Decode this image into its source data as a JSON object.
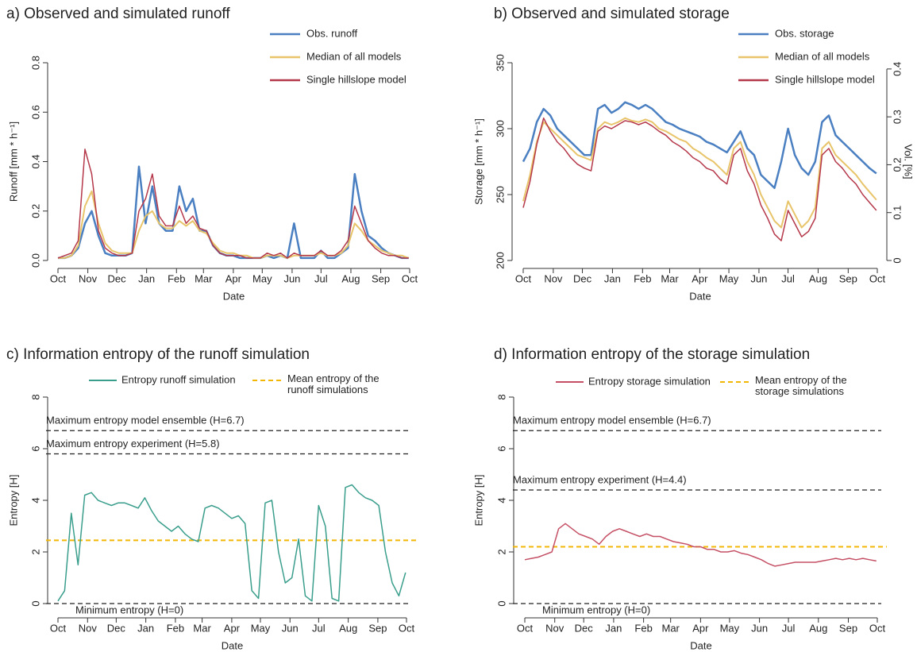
{
  "chart_data": [
    {
      "type": "line",
      "title": "a) Observed and simulated runoff",
      "xlabel": "Date",
      "ylabel": "Runoff [mm * h⁻¹]",
      "x": [
        0,
        7,
        14,
        21,
        28,
        35,
        42,
        49,
        56,
        63,
        70,
        77,
        84,
        91,
        98,
        105,
        112,
        119,
        126,
        133,
        140,
        147,
        154,
        161,
        168,
        175,
        182,
        189,
        196,
        203,
        210,
        217,
        224,
        231,
        238,
        245,
        252,
        259,
        266,
        273,
        280,
        287,
        294,
        301,
        308,
        315,
        322,
        329,
        336,
        343,
        350,
        357,
        364
      ],
      "xlim": [
        0,
        365
      ],
      "xticks": [
        {
          "value": 0,
          "label": "Oct"
        },
        {
          "value": 31,
          "label": "Nov"
        },
        {
          "value": 61,
          "label": "Dec"
        },
        {
          "value": 92,
          "label": "Jan"
        },
        {
          "value": 123,
          "label": "Feb"
        },
        {
          "value": 151,
          "label": "Mar"
        },
        {
          "value": 182,
          "label": "Apr"
        },
        {
          "value": 212,
          "label": "May"
        },
        {
          "value": 243,
          "label": "Jun"
        },
        {
          "value": 273,
          "label": "Jul"
        },
        {
          "value": 304,
          "label": "Aug"
        },
        {
          "value": 335,
          "label": "Sep"
        },
        {
          "value": 365,
          "label": "Oct"
        }
      ],
      "ylim": [
        0,
        0.8
      ],
      "yticks": [
        {
          "value": 0,
          "label": "0.0"
        },
        0.2,
        0.4,
        0.6,
        0.8
      ],
      "series": [
        {
          "name": "Obs. runoff",
          "color": "#4a7fc1",
          "values": [
            0.01,
            0.01,
            0.02,
            0.05,
            0.15,
            0.2,
            0.1,
            0.03,
            0.02,
            0.02,
            0.02,
            0.03,
            0.38,
            0.15,
            0.3,
            0.15,
            0.12,
            0.12,
            0.3,
            0.2,
            0.25,
            0.12,
            0.12,
            0.06,
            0.03,
            0.02,
            0.02,
            0.01,
            0.01,
            0.01,
            0.01,
            0.02,
            0.01,
            0.02,
            0.01,
            0.15,
            0.01,
            0.01,
            0.01,
            0.04,
            0.01,
            0.01,
            0.03,
            0.05,
            0.35,
            0.2,
            0.1,
            0.08,
            0.05,
            0.03,
            0.02,
            0.01,
            0.01
          ]
        },
        {
          "name": "Median of all models",
          "color": "#e8c46a",
          "values": [
            0.01,
            0.01,
            0.02,
            0.06,
            0.22,
            0.28,
            0.15,
            0.07,
            0.04,
            0.03,
            0.03,
            0.03,
            0.12,
            0.18,
            0.2,
            0.15,
            0.13,
            0.13,
            0.16,
            0.14,
            0.16,
            0.12,
            0.11,
            0.07,
            0.04,
            0.03,
            0.03,
            0.02,
            0.02,
            0.01,
            0.01,
            0.02,
            0.02,
            0.02,
            0.01,
            0.02,
            0.02,
            0.02,
            0.02,
            0.03,
            0.02,
            0.02,
            0.03,
            0.06,
            0.15,
            0.12,
            0.08,
            0.06,
            0.04,
            0.03,
            0.02,
            0.02,
            0.01
          ]
        },
        {
          "name": "Single hillslope model",
          "color": "#b5384a",
          "values": [
            0.01,
            0.02,
            0.03,
            0.08,
            0.45,
            0.35,
            0.12,
            0.05,
            0.03,
            0.02,
            0.02,
            0.03,
            0.2,
            0.25,
            0.35,
            0.18,
            0.14,
            0.14,
            0.22,
            0.15,
            0.18,
            0.13,
            0.12,
            0.06,
            0.03,
            0.02,
            0.02,
            0.02,
            0.01,
            0.01,
            0.01,
            0.03,
            0.02,
            0.03,
            0.01,
            0.03,
            0.02,
            0.02,
            0.02,
            0.04,
            0.02,
            0.02,
            0.04,
            0.08,
            0.22,
            0.15,
            0.08,
            0.05,
            0.03,
            0.02,
            0.02,
            0.01,
            0.01
          ]
        }
      ]
    },
    {
      "type": "line",
      "title": "b) Observed and simulated storage",
      "xlabel": "Date",
      "ylabel": "Storage [mm * h⁻¹]",
      "y2label": "Vol. [%]",
      "x": [
        0,
        7,
        14,
        21,
        28,
        35,
        42,
        49,
        56,
        63,
        70,
        77,
        84,
        91,
        98,
        105,
        112,
        119,
        126,
        133,
        140,
        147,
        154,
        161,
        168,
        175,
        182,
        189,
        196,
        203,
        210,
        217,
        224,
        231,
        238,
        245,
        252,
        259,
        266,
        273,
        280,
        287,
        294,
        301,
        308,
        315,
        322,
        329,
        336,
        343,
        350,
        357,
        364
      ],
      "xlim": [
        0,
        365
      ],
      "xticks": [
        {
          "value": 0,
          "label": "Oct"
        },
        {
          "value": 31,
          "label": "Nov"
        },
        {
          "value": 61,
          "label": "Dec"
        },
        {
          "value": 92,
          "label": "Jan"
        },
        {
          "value": 123,
          "label": "Feb"
        },
        {
          "value": 151,
          "label": "Mar"
        },
        {
          "value": 182,
          "label": "Apr"
        },
        {
          "value": 212,
          "label": "May"
        },
        {
          "value": 243,
          "label": "Jun"
        },
        {
          "value": 273,
          "label": "Jul"
        },
        {
          "value": 304,
          "label": "Aug"
        },
        {
          "value": 335,
          "label": "Sep"
        },
        {
          "value": 365,
          "label": "Oct"
        }
      ],
      "ylim": [
        200,
        350
      ],
      "yticks": [
        200,
        250,
        300,
        350
      ],
      "y2lim": [
        0,
        0.413
      ],
      "y2ticks": [
        0,
        0.1,
        0.2,
        0.3,
        0.4
      ],
      "series": [
        {
          "name": "Obs. storage",
          "color": "#4a7fc1",
          "values": [
            275,
            285,
            305,
            315,
            310,
            300,
            295,
            290,
            285,
            280,
            280,
            315,
            318,
            312,
            315,
            320,
            318,
            315,
            318,
            315,
            310,
            305,
            303,
            300,
            298,
            296,
            294,
            290,
            288,
            285,
            282,
            290,
            298,
            285,
            280,
            265,
            260,
            255,
            275,
            300,
            280,
            270,
            265,
            275,
            305,
            310,
            295,
            290,
            285,
            280,
            275,
            270,
            266
          ]
        },
        {
          "name": "Median of all models",
          "color": "#e8c46a",
          "values": [
            245,
            265,
            290,
            305,
            300,
            295,
            290,
            285,
            280,
            278,
            276,
            300,
            305,
            303,
            305,
            308,
            306,
            305,
            307,
            305,
            300,
            298,
            295,
            292,
            290,
            285,
            282,
            278,
            275,
            270,
            265,
            285,
            290,
            275,
            265,
            250,
            240,
            230,
            225,
            245,
            235,
            225,
            230,
            240,
            285,
            290,
            280,
            275,
            270,
            265,
            258,
            252,
            246
          ]
        },
        {
          "name": "Single hillslope model",
          "color": "#b5384a",
          "values": [
            240,
            260,
            288,
            308,
            298,
            290,
            285,
            278,
            273,
            270,
            268,
            298,
            302,
            300,
            303,
            306,
            305,
            303,
            305,
            302,
            298,
            295,
            290,
            287,
            283,
            278,
            275,
            270,
            268,
            262,
            258,
            280,
            285,
            268,
            258,
            242,
            232,
            220,
            215,
            238,
            228,
            218,
            222,
            232,
            280,
            285,
            275,
            270,
            263,
            258,
            250,
            244,
            238
          ]
        }
      ]
    },
    {
      "type": "line",
      "title": "c) Information entropy of the runoff simulation",
      "xlabel": "Date",
      "ylabel": "Entropy [H]",
      "x": [
        0,
        7,
        14,
        21,
        28,
        35,
        42,
        49,
        56,
        63,
        70,
        77,
        84,
        91,
        98,
        105,
        112,
        119,
        126,
        133,
        140,
        147,
        154,
        161,
        168,
        175,
        182,
        189,
        196,
        203,
        210,
        217,
        224,
        231,
        238,
        245,
        252,
        259,
        266,
        273,
        280,
        287,
        294,
        301,
        308,
        315,
        322,
        329,
        336,
        343,
        350,
        357,
        364
      ],
      "xlim": [
        0,
        365
      ],
      "xticks": [
        {
          "value": 0,
          "label": "Oct"
        },
        {
          "value": 31,
          "label": "Nov"
        },
        {
          "value": 61,
          "label": "Dec"
        },
        {
          "value": 92,
          "label": "Jan"
        },
        {
          "value": 123,
          "label": "Feb"
        },
        {
          "value": 151,
          "label": "Mar"
        },
        {
          "value": 182,
          "label": "Apr"
        },
        {
          "value": 212,
          "label": "May"
        },
        {
          "value": 243,
          "label": "Jun"
        },
        {
          "value": 273,
          "label": "Jul"
        },
        {
          "value": 304,
          "label": "Aug"
        },
        {
          "value": 335,
          "label": "Sep"
        },
        {
          "value": 365,
          "label": "Oct"
        }
      ],
      "ylim": [
        0,
        8
      ],
      "yticks": [
        0,
        2,
        4,
        6,
        8
      ],
      "series": [
        {
          "name": "Entropy runoff simulation",
          "color": "#3a9e8c",
          "values": [
            0.1,
            0.5,
            3.5,
            1.5,
            4.2,
            4.3,
            4.0,
            3.9,
            3.8,
            3.9,
            3.9,
            3.8,
            3.7,
            4.1,
            3.6,
            3.2,
            3.0,
            2.8,
            3.0,
            2.7,
            2.5,
            2.4,
            3.7,
            3.8,
            3.7,
            3.5,
            3.3,
            3.4,
            3.1,
            0.5,
            0.2,
            3.9,
            4.0,
            2.0,
            0.8,
            1.0,
            2.5,
            0.3,
            0.1,
            3.8,
            3.0,
            0.2,
            0.1,
            4.5,
            4.6,
            4.3,
            4.1,
            4.0,
            3.8,
            2.0,
            0.8,
            0.3,
            1.2
          ]
        }
      ],
      "mean_line": {
        "name": "Mean entropy of the runoff simulations",
        "value": 2.45,
        "color": "#f2b705"
      },
      "hlines": [
        {
          "value": 6.7,
          "label": "Maximum entropy model ensemble (H=6.7)"
        },
        {
          "value": 5.8,
          "label": "Maximum entropy experiment (H=5.8)"
        },
        {
          "value": 0,
          "label": "Minimum entropy (H=0)"
        }
      ]
    },
    {
      "type": "line",
      "title": "d) Information entropy of the storage simulation",
      "xlabel": "Date",
      "ylabel": "Entropy [H]",
      "x": [
        0,
        7,
        14,
        21,
        28,
        35,
        42,
        49,
        56,
        63,
        70,
        77,
        84,
        91,
        98,
        105,
        112,
        119,
        126,
        133,
        140,
        147,
        154,
        161,
        168,
        175,
        182,
        189,
        196,
        203,
        210,
        217,
        224,
        231,
        238,
        245,
        252,
        259,
        266,
        273,
        280,
        287,
        294,
        301,
        308,
        315,
        322,
        329,
        336,
        343,
        350,
        357,
        364
      ],
      "xlim": [
        0,
        365
      ],
      "xticks": [
        {
          "value": 0,
          "label": "Oct"
        },
        {
          "value": 31,
          "label": "Nov"
        },
        {
          "value": 61,
          "label": "Dec"
        },
        {
          "value": 92,
          "label": "Jan"
        },
        {
          "value": 123,
          "label": "Feb"
        },
        {
          "value": 151,
          "label": "Mar"
        },
        {
          "value": 182,
          "label": "Apr"
        },
        {
          "value": 212,
          "label": "May"
        },
        {
          "value": 243,
          "label": "Jun"
        },
        {
          "value": 273,
          "label": "Jul"
        },
        {
          "value": 304,
          "label": "Aug"
        },
        {
          "value": 335,
          "label": "Sep"
        },
        {
          "value": 365,
          "label": "Oct"
        }
      ],
      "ylim": [
        0,
        8
      ],
      "yticks": [
        0,
        2,
        4,
        6,
        8
      ],
      "series": [
        {
          "name": "Entropy storage simulation",
          "color": "#c55065",
          "values": [
            1.7,
            1.75,
            1.8,
            1.9,
            2.0,
            2.9,
            3.1,
            2.9,
            2.7,
            2.6,
            2.5,
            2.3,
            2.6,
            2.8,
            2.9,
            2.8,
            2.7,
            2.6,
            2.7,
            2.6,
            2.6,
            2.5,
            2.4,
            2.35,
            2.3,
            2.2,
            2.2,
            2.1,
            2.1,
            2.0,
            2.0,
            2.05,
            1.95,
            1.9,
            1.8,
            1.7,
            1.55,
            1.45,
            1.5,
            1.55,
            1.6,
            1.6,
            1.6,
            1.6,
            1.65,
            1.7,
            1.75,
            1.7,
            1.75,
            1.7,
            1.75,
            1.7,
            1.65
          ]
        }
      ],
      "mean_line": {
        "name": "Mean entropy of the storage simulations",
        "value": 2.2,
        "color": "#f2b705"
      },
      "hlines": [
        {
          "value": 6.7,
          "label": "Maximum entropy model ensemble (H=6.7)"
        },
        {
          "value": 4.4,
          "label": "Maximum entropy experiment (H=4.4)"
        },
        {
          "value": 0,
          "label": "Minimum entropy (H=0)"
        }
      ]
    }
  ]
}
